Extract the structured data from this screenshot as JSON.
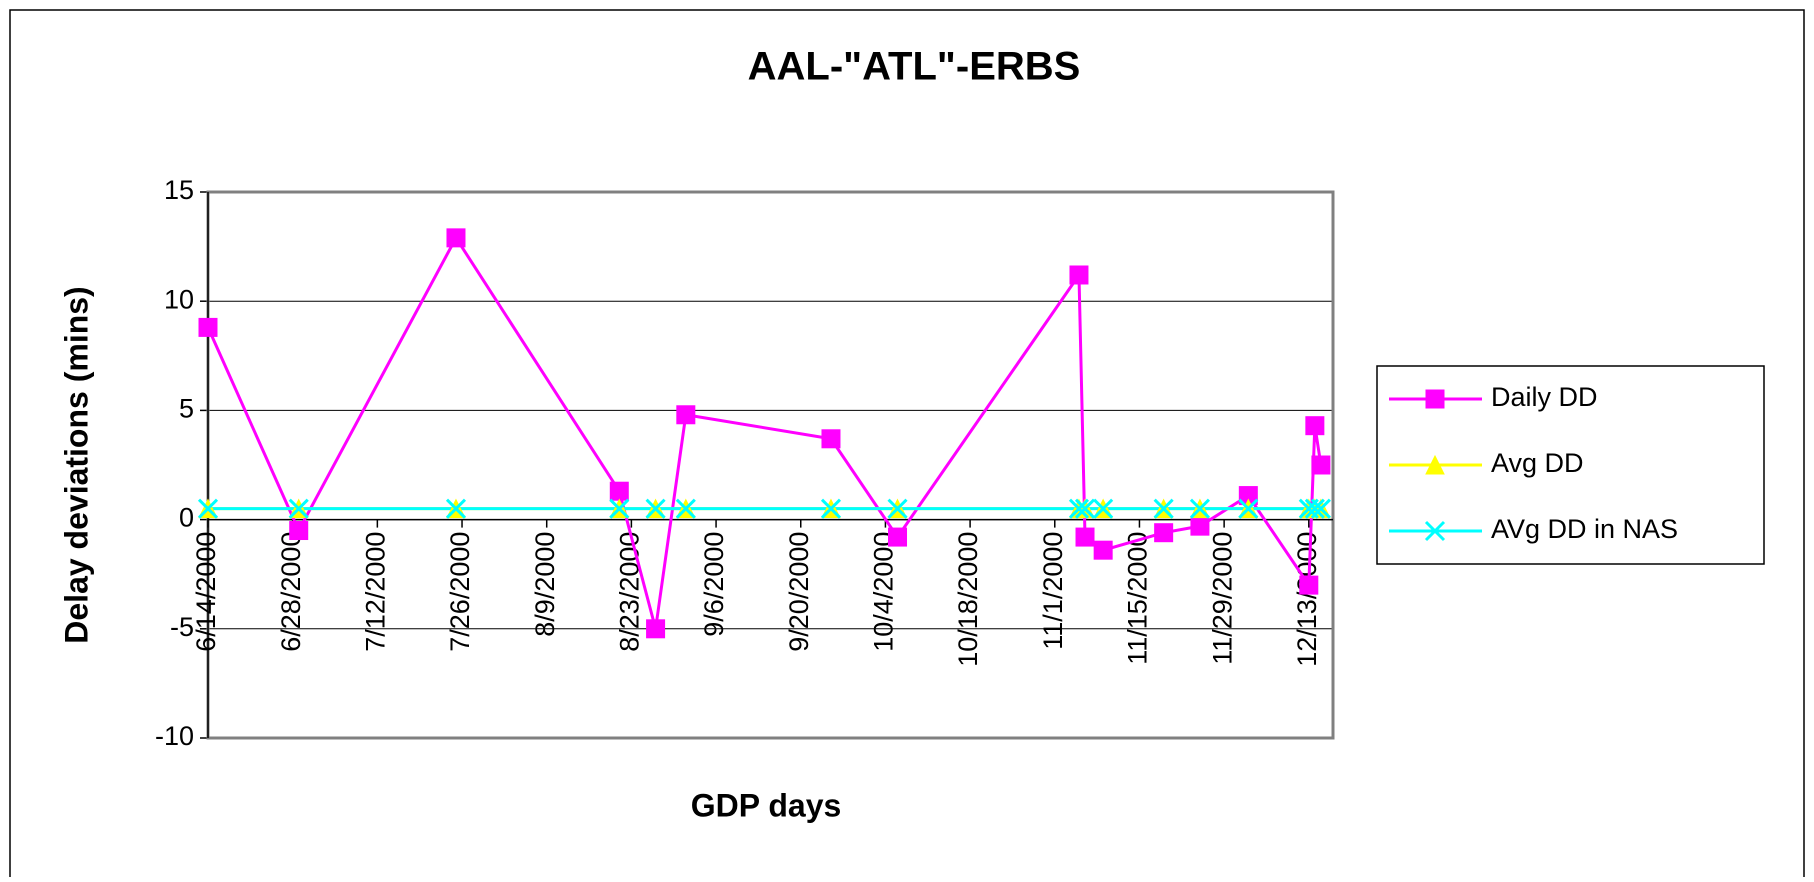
{
  "chart_data": {
    "type": "line",
    "title": "AAL-\"ATL\"-ERBS",
    "x_label": "GDP days",
    "y_label": "Delay deviations (mins)",
    "x": [
      "6/14/2000",
      "6/29/2000",
      "7/25/2000",
      "8/21/2000",
      "8/27/2000",
      "9/1/2000",
      "9/25/2000",
      "10/6/2000",
      "11/5/2000",
      "11/6/2000",
      "11/9/2000",
      "11/19/2000",
      "11/25/2000",
      "12/3/2000",
      "12/13/2000",
      "12/14/2000",
      "12/15/2000"
    ],
    "series": [
      {
        "name": "Daily DD",
        "color": "#FF00FF",
        "marker": "square",
        "values": [
          8.8,
          -0.5,
          12.9,
          1.3,
          -5,
          4.8,
          3.7,
          -0.8,
          11.2,
          -0.8,
          -1.4,
          -0.6,
          -0.3,
          1.1,
          -3,
          4.3,
          2.5
        ]
      },
      {
        "name": "Avg DD",
        "color": "#FFFF00",
        "marker": "triangle",
        "values": [
          0.5,
          0.5,
          0.5,
          0.5,
          0.5,
          0.5,
          0.5,
          0.5,
          0.5,
          0.5,
          0.5,
          0.5,
          0.5,
          0.5,
          0.5,
          0.5,
          0.5
        ]
      },
      {
        "name": "AVg DD in NAS",
        "color": "#00FFFF",
        "marker": "x",
        "values": [
          0.5,
          0.5,
          0.5,
          0.5,
          0.5,
          0.5,
          0.5,
          0.5,
          0.5,
          0.5,
          0.5,
          0.5,
          0.5,
          0.5,
          0.5,
          0.5,
          0.5
        ]
      }
    ],
    "xlim": [
      "6/14/2000",
      "12/17/2000"
    ],
    "xticks": [
      "6/14/2000",
      "6/28/2000",
      "7/12/2000",
      "7/26/2000",
      "8/9/2000",
      "8/23/2000",
      "9/6/2000",
      "9/20/2000",
      "10/4/2000",
      "10/18/2000",
      "11/1/2000",
      "11/15/2000",
      "11/29/2000",
      "12/13/2000"
    ],
    "ylim": [
      -10,
      15
    ],
    "yticks": [
      -10,
      -5,
      0,
      5,
      10,
      15
    ],
    "grid": true,
    "legend": "right"
  }
}
